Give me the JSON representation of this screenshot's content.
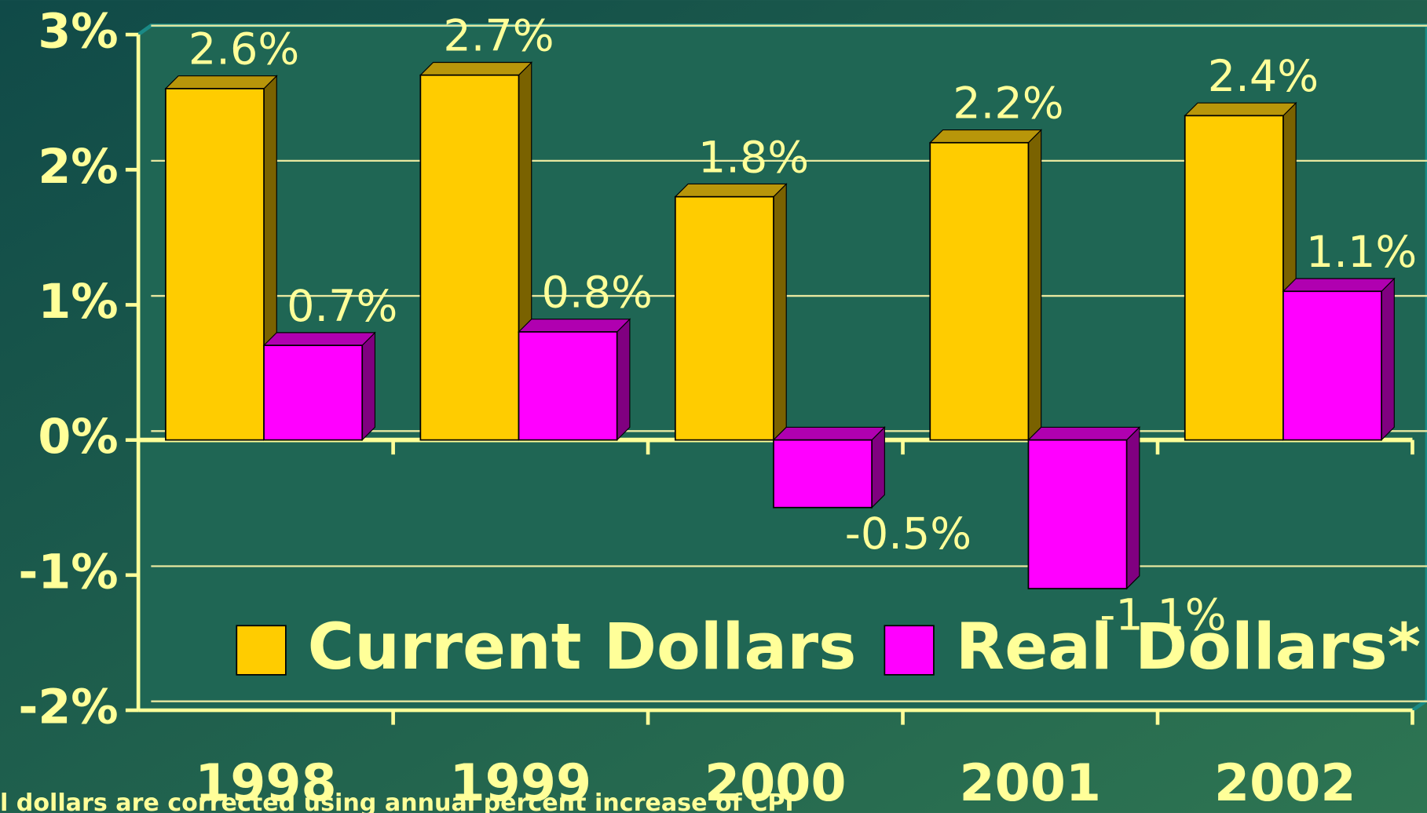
{
  "chart_data": {
    "type": "bar",
    "categories": [
      "1998",
      "1999",
      "2000",
      "2001",
      "2002"
    ],
    "series": [
      {
        "name": "Current Dollars",
        "color": "#ffcc00",
        "values": [
          2.6,
          2.7,
          1.8,
          2.2,
          2.4
        ],
        "value_labels": [
          "2.6%",
          "2.7%",
          "1.8%",
          "2.2%",
          "2.4%"
        ]
      },
      {
        "name": "Real Dollars*",
        "color": "#ff00ff",
        "values": [
          0.7,
          0.8,
          -0.5,
          -1.1,
          1.1
        ],
        "value_labels": [
          "0.7%",
          "0.8%",
          "-0.5%",
          "-1.1%",
          "1.1%"
        ]
      }
    ],
    "ylim": [
      -2,
      3
    ],
    "yticks": [
      {
        "value": -2,
        "label": "-2%"
      },
      {
        "value": -1,
        "label": "-1%"
      },
      {
        "value": 0,
        "label": "0%"
      },
      {
        "value": 1,
        "label": "1%"
      },
      {
        "value": 2,
        "label": "2%"
      },
      {
        "value": 3,
        "label": "3%"
      }
    ],
    "grid": true,
    "note": "l dollars are corrected using annual percent increase of CPI"
  }
}
